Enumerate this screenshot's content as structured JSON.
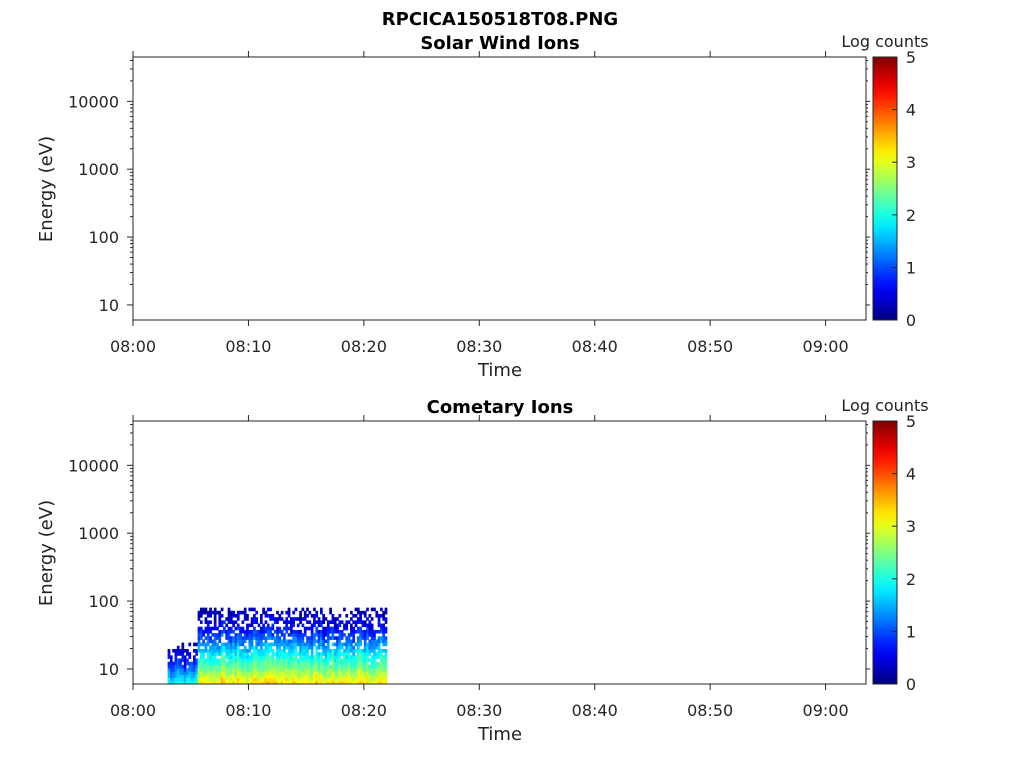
{
  "figure_title": "RPCICA150518T08.PNG",
  "colorbar": {
    "label": "Log counts",
    "range": [
      0,
      5
    ],
    "ticks": [
      "0",
      "1",
      "2",
      "3",
      "4",
      "5"
    ]
  },
  "chart_data": [
    {
      "type": "heatmap",
      "title": "Solar Wind Ions",
      "xlabel": "Time",
      "ylabel": "Energy (eV)",
      "x_ticks": [
        "08:00",
        "08:10",
        "08:20",
        "08:30",
        "08:40",
        "08:50",
        "09:00"
      ],
      "x_range_minutes": [
        0,
        63.5
      ],
      "y_scale": "log",
      "y_ticks": [
        "10",
        "100",
        "1000",
        "10000"
      ],
      "y_range": [
        6,
        45000
      ],
      "data": []
    },
    {
      "type": "heatmap",
      "title": "Cometary Ions",
      "xlabel": "Time",
      "ylabel": "Energy (eV)",
      "x_ticks": [
        "08:00",
        "08:10",
        "08:20",
        "08:30",
        "08:40",
        "08:50",
        "09:00"
      ],
      "x_range_minutes": [
        0,
        63.5
      ],
      "y_scale": "log",
      "y_ticks": [
        "10",
        "100",
        "1000",
        "10000"
      ],
      "y_range": [
        6,
        45000
      ],
      "data_extent": {
        "time_start": "08:03",
        "time_end": "08:22",
        "energy_max_eV": 80,
        "energy_min_eV": 6
      },
      "log_count_profile": [
        {
          "energy_eV": 6,
          "log_counts": 3.3
        },
        {
          "energy_eV": 8,
          "log_counts": 2.9
        },
        {
          "energy_eV": 10,
          "log_counts": 2.5
        },
        {
          "energy_eV": 15,
          "log_counts": 2.0
        },
        {
          "energy_eV": 20,
          "log_counts": 1.6
        },
        {
          "energy_eV": 30,
          "log_counts": 1.0
        },
        {
          "energy_eV": 50,
          "log_counts": 0.5
        },
        {
          "energy_eV": 80,
          "log_counts": 0.2
        }
      ]
    }
  ]
}
